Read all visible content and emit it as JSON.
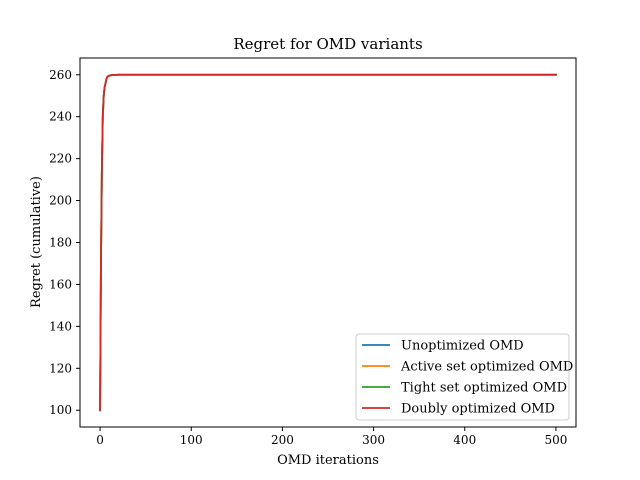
{
  "chart_data": {
    "type": "line",
    "title": "Regret for OMD variants",
    "xlabel": "OMD iterations",
    "ylabel": "Regret (cumulative)",
    "xlim": [
      -22,
      522
    ],
    "ylim": [
      92,
      268
    ],
    "xticks": [
      0,
      100,
      200,
      300,
      400,
      500
    ],
    "yticks": [
      100,
      120,
      140,
      160,
      180,
      200,
      220,
      240,
      260
    ],
    "grid": false,
    "legend_position": "lower-right",
    "x": [
      0,
      1,
      2,
      3,
      4,
      5,
      6,
      7,
      8,
      10,
      12,
      15,
      20,
      50,
      100,
      200,
      300,
      400,
      500
    ],
    "series": [
      {
        "name": "Unoptimized OMD",
        "color": "#1f77b4",
        "values": [
          100,
          170,
          215,
          240,
          250,
          254,
          256,
          258,
          259,
          259.6,
          259.8,
          259.9,
          260,
          260,
          260,
          260,
          260,
          260,
          260
        ]
      },
      {
        "name": "Active set optimized OMD",
        "color": "#ff7f0e",
        "values": [
          100,
          170,
          215,
          240,
          250,
          254,
          256,
          258,
          259,
          259.6,
          259.8,
          259.9,
          260,
          260,
          260,
          260,
          260,
          260,
          260
        ]
      },
      {
        "name": "Tight set optimized OMD",
        "color": "#2ca02c",
        "values": [
          100,
          170,
          215,
          240,
          250,
          254,
          256,
          258,
          259,
          259.6,
          259.8,
          259.9,
          260,
          260,
          260,
          260,
          260,
          260,
          260
        ]
      },
      {
        "name": "Doubly optimized OMD",
        "color": "#d62728",
        "values": [
          100,
          170,
          215,
          240,
          250,
          254,
          256,
          258,
          259,
          259.6,
          259.8,
          259.9,
          260,
          260,
          260,
          260,
          260,
          260,
          260
        ]
      }
    ]
  }
}
